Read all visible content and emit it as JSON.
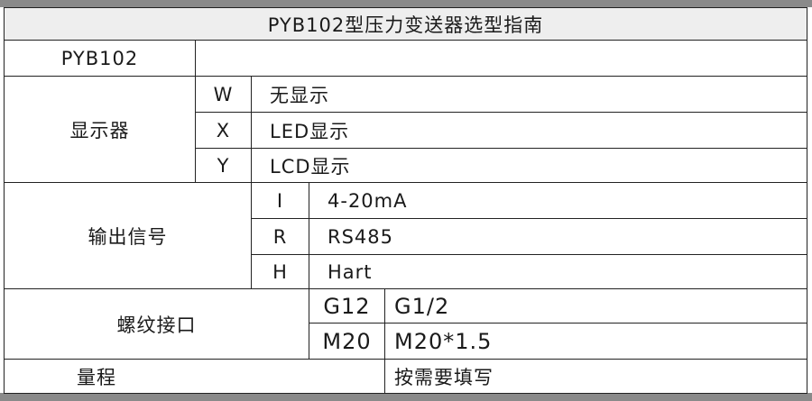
{
  "title": "PYB102型压力变送器选型指南",
  "model": {
    "label": "PYB102",
    "value": ""
  },
  "display": {
    "label": "显示器",
    "options": [
      {
        "code": "W",
        "desc": "无显示"
      },
      {
        "code": "X",
        "desc": "LED显示"
      },
      {
        "code": "Y",
        "desc": "LCD显示"
      }
    ]
  },
  "output": {
    "label": "输出信号",
    "options": [
      {
        "code": "I",
        "desc": "4-20mA"
      },
      {
        "code": "R",
        "desc": "RS485"
      },
      {
        "code": "H",
        "desc": "Hart"
      }
    ]
  },
  "thread": {
    "label": "螺纹接口",
    "options": [
      {
        "code": "G12",
        "desc": "G1/2"
      },
      {
        "code": "M20",
        "desc": "M20*1.5"
      }
    ]
  },
  "range": {
    "label": "量程",
    "desc": "按需要填写"
  }
}
